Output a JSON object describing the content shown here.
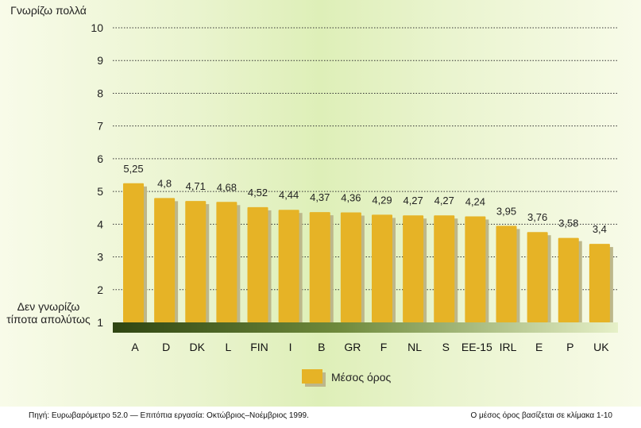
{
  "chart_data": {
    "type": "bar",
    "categories": [
      "A",
      "D",
      "DK",
      "L",
      "FIN",
      "I",
      "B",
      "GR",
      "F",
      "NL",
      "S",
      "EE-15",
      "IRL",
      "E",
      "P",
      "UK"
    ],
    "series": [
      {
        "name": "Μέσος όρος",
        "values": [
          5.25,
          4.8,
          4.71,
          4.68,
          4.52,
          4.44,
          4.37,
          4.36,
          4.29,
          4.27,
          4.27,
          4.24,
          3.95,
          3.76,
          3.58,
          3.4
        ]
      }
    ],
    "value_labels": [
      "5,25",
      "4,8",
      "4,71",
      "4,68",
      "4,52",
      "4,44",
      "4,37",
      "4,36",
      "4,29",
      "4,27",
      "4,27",
      "4,24",
      "3,95",
      "3,76",
      "3,58",
      "3,4"
    ],
    "yticks": [
      "1",
      "2",
      "3",
      "4",
      "5",
      "6",
      "7",
      "8",
      "9",
      "10"
    ],
    "ylim": [
      1,
      10
    ],
    "grid": true,
    "legend_position": "bottom-center",
    "colors": {
      "bar": "#e6b326",
      "bar_shadow": "#bdb78a",
      "grid": "#333333",
      "axis_band_dark": "#3a521a"
    }
  },
  "ylabel_top": "Γνωρίζω πολλά",
  "ylabel_bottom": "Δεν γνωρίζω τίποτα απολύτως",
  "footer": {
    "source": "Πηγή: Ευρωβαρόμετρο 52.0 — Επιτόπια εργασία: Οκτώβριος–Νοέμβριος 1999.",
    "note": "Ο μέσος όρος βασίζεται σε κλίμακα 1-10"
  }
}
